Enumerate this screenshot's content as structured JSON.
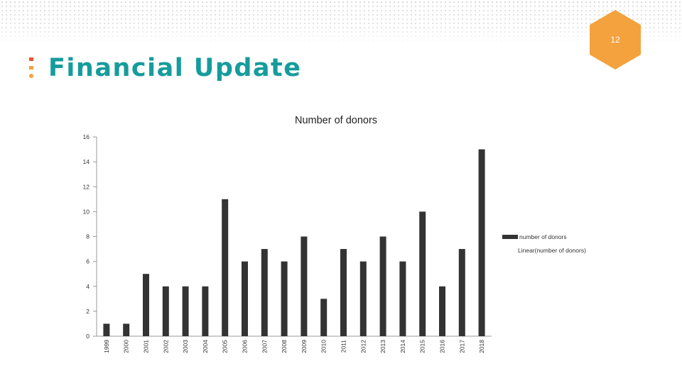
{
  "slide": {
    "page_number": "12",
    "title": "Financial Update",
    "accent_color": "#169C9C",
    "badge_color": "#F4A23E",
    "marker_colors": [
      "#E8542A",
      "#F4A23E",
      "#169C9C"
    ]
  },
  "chart_data": {
    "type": "bar",
    "title": "Number of donors",
    "categories": [
      "1999",
      "2000",
      "2001",
      "2002",
      "2003",
      "2004",
      "2005",
      "2006",
      "2007",
      "2008",
      "2009",
      "2010",
      "2011",
      "2012",
      "2013",
      "2014",
      "2015",
      "2016",
      "2017",
      "2018"
    ],
    "series": [
      {
        "name": "number of donors",
        "values": [
          1,
          1,
          5,
          4,
          4,
          4,
          11,
          6,
          7,
          6,
          8,
          3,
          7,
          6,
          8,
          6,
          10,
          4,
          7,
          15
        ],
        "color": "#333333"
      }
    ],
    "trendline": {
      "name": "Linear(number of donors)"
    },
    "y_ticks": [
      "0",
      "2",
      "4",
      "6",
      "8",
      "10",
      "12",
      "14",
      "16"
    ],
    "ylim": [
      0,
      16
    ],
    "grid": false,
    "legend_position": "right"
  }
}
